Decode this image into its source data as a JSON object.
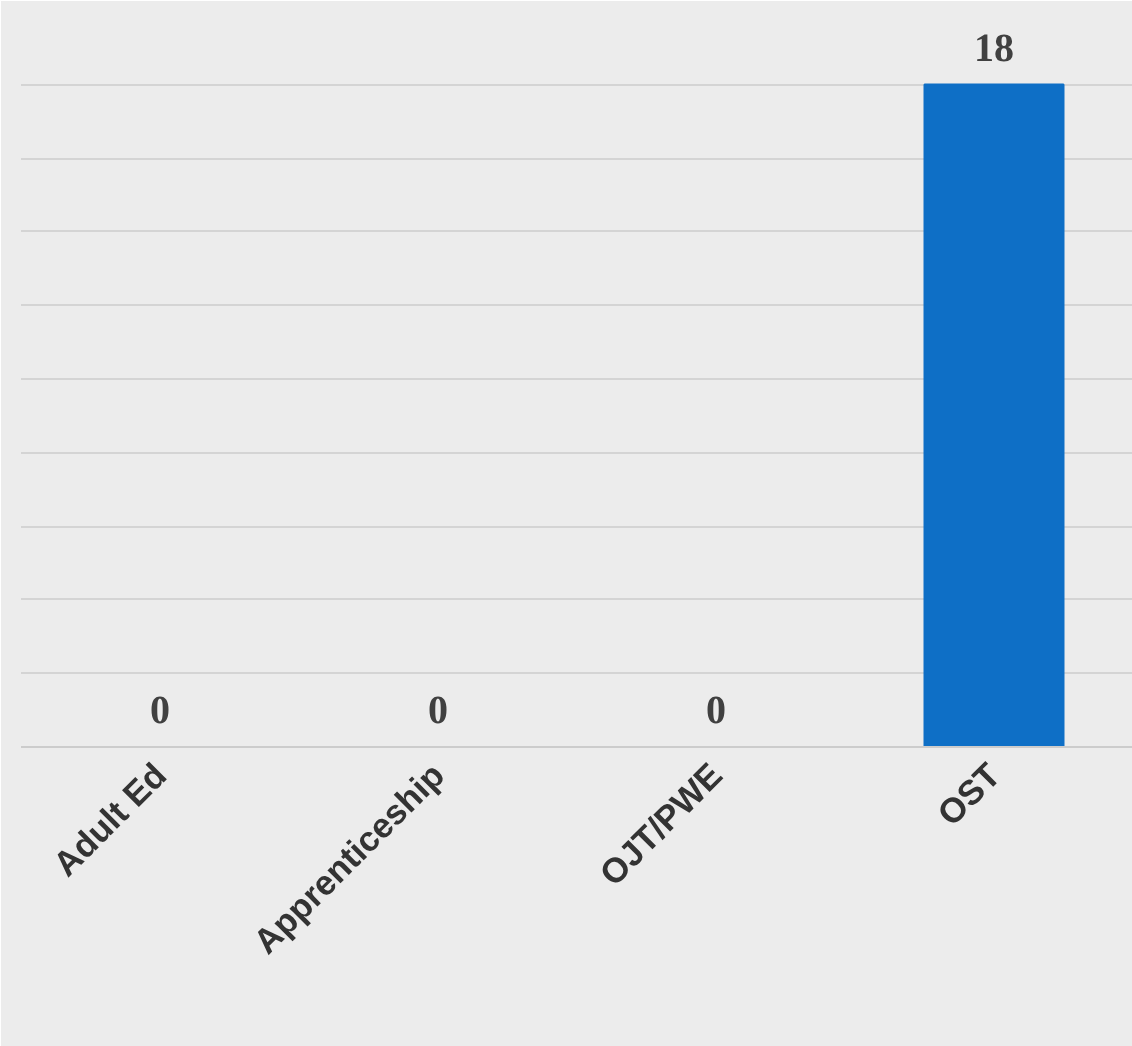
{
  "chart_data": {
    "type": "bar",
    "categories": [
      "Adult Ed",
      "Apprenticeship",
      "OJT/PWE",
      "OST"
    ],
    "values": [
      0,
      0,
      0,
      18
    ],
    "color": "#0e6fc6",
    "ylim": [
      0,
      20
    ],
    "yticks": [
      {
        "value": 0,
        "label": null
      },
      {
        "value": 2,
        "label": null
      },
      {
        "value": 4,
        "label": null
      },
      {
        "value": 6,
        "label": null
      },
      {
        "value": 8,
        "label": null
      },
      {
        "value": 10,
        "label": null
      },
      {
        "value": 12,
        "label": null
      },
      {
        "value": 14,
        "label": null
      },
      {
        "value": 16,
        "label": null
      },
      {
        "value": 18,
        "label": null
      },
      {
        "value": 20,
        "label": null
      }
    ],
    "grid": "y",
    "tick_labels": "x",
    "data_labels": true
  }
}
